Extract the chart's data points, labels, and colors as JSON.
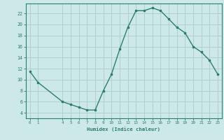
{
  "x": [
    0,
    1,
    4,
    5,
    6,
    7,
    8,
    9,
    10,
    11,
    12,
    13,
    14,
    15,
    16,
    17,
    18,
    19,
    20,
    21,
    22,
    23
  ],
  "y": [
    11.5,
    9.5,
    6.0,
    5.5,
    5.0,
    4.5,
    4.5,
    8.0,
    11.0,
    15.5,
    19.5,
    22.5,
    22.5,
    23.0,
    22.5,
    21.0,
    19.5,
    18.5,
    16.0,
    15.0,
    13.5,
    11.0
  ],
  "xlabel": "Humidex (Indice chaleur)",
  "xticks": [
    0,
    1,
    4,
    5,
    6,
    7,
    8,
    9,
    10,
    11,
    12,
    13,
    14,
    15,
    16,
    17,
    18,
    19,
    20,
    21,
    22,
    23
  ],
  "yticks": [
    4,
    6,
    8,
    10,
    12,
    14,
    16,
    18,
    20,
    22
  ],
  "ylim": [
    3.0,
    23.8
  ],
  "xlim": [
    -0.5,
    23.5
  ],
  "line_color": "#2d7d6e",
  "marker_color": "#2d7d6e",
  "bg_color": "#cce9e7",
  "grid_color": "#b0d0cd",
  "axis_color": "#2d7d6e",
  "tick_label_color": "#2d7d6e",
  "xlabel_color": "#2d7d6e"
}
